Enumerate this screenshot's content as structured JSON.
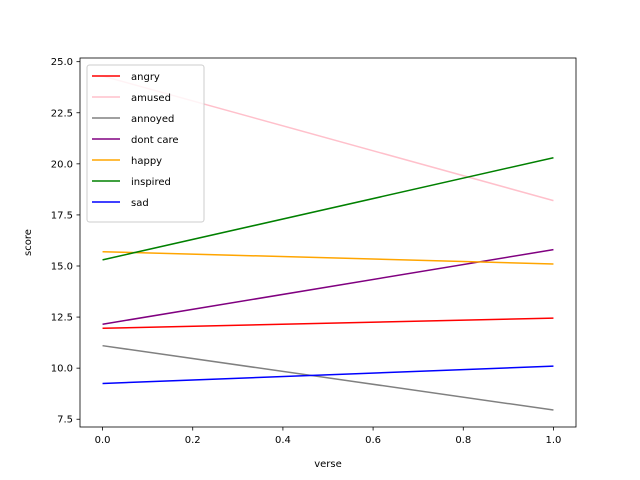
{
  "chart_data": {
    "type": "line",
    "title": "",
    "xlabel": "verse",
    "ylabel": "score",
    "xlim": [
      -0.05,
      1.05
    ],
    "ylim": [
      7.12,
      25.18
    ],
    "xticks": [
      0.0,
      0.2,
      0.4,
      0.6,
      0.8,
      1.0
    ],
    "xtick_labels": [
      "0.0",
      "0.2",
      "0.4",
      "0.6",
      "0.8",
      "1.0"
    ],
    "yticks": [
      7.5,
      10.0,
      12.5,
      15.0,
      17.5,
      20.0,
      22.5,
      25.0
    ],
    "ytick_labels": [
      "7.5",
      "10.0",
      "12.5",
      "15.0",
      "17.5",
      "20.0",
      "22.5",
      "25.0"
    ],
    "grid": false,
    "legend_position": "top-left",
    "x": [
      0.0,
      1.0
    ],
    "series": [
      {
        "name": "angry",
        "color": "#ff0000",
        "values": [
          11.95,
          12.45
        ]
      },
      {
        "name": "amused",
        "color": "#ffc0cb",
        "values": [
          24.3,
          18.2
        ]
      },
      {
        "name": "annoyed",
        "color": "#808080",
        "values": [
          11.1,
          7.95
        ]
      },
      {
        "name": "dont care",
        "color": "#800080",
        "values": [
          12.15,
          15.8
        ]
      },
      {
        "name": "happy",
        "color": "#ffa500",
        "values": [
          15.7,
          15.1
        ]
      },
      {
        "name": "inspired",
        "color": "#008000",
        "values": [
          15.3,
          20.3
        ]
      },
      {
        "name": "sad",
        "color": "#0000ff",
        "values": [
          9.25,
          10.1
        ]
      }
    ]
  }
}
